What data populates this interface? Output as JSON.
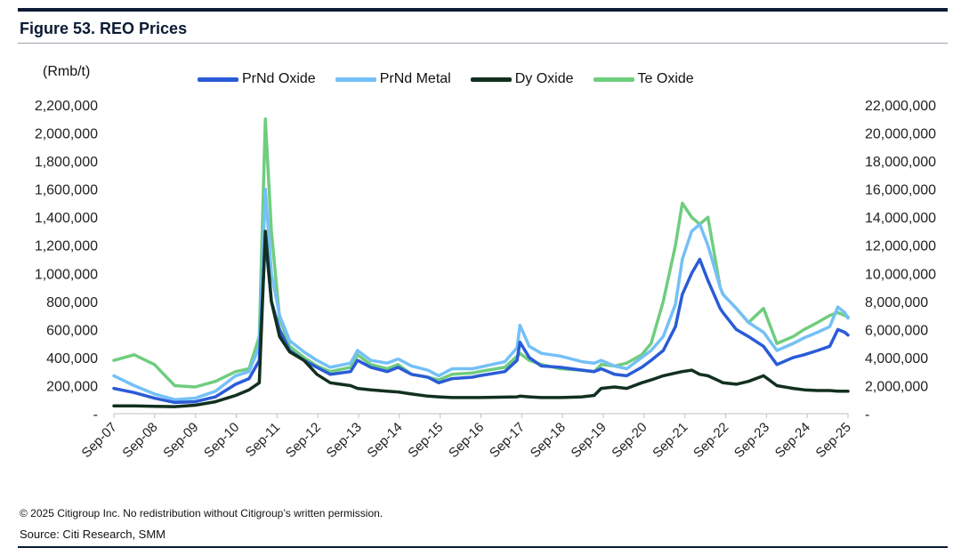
{
  "figure": {
    "title": "Figure 53. REO Prices",
    "copyright": "© 2025 Citigroup Inc. No redistribution without Citigroup’s written permission.",
    "source": "Source: Citi Research, SMM"
  },
  "chart_data": {
    "type": "line",
    "title": "Figure 53. REO Prices",
    "ylabel": "(Rmb/t)",
    "ylim": [
      0,
      2200000
    ],
    "y2lim": [
      0,
      22000000
    ],
    "yticks": [
      "-",
      "200,000",
      "400,000",
      "600,000",
      "800,000",
      "1,000,000",
      "1,200,000",
      "1,400,000",
      "1,600,000",
      "1,800,000",
      "2,000,000",
      "2,200,000"
    ],
    "y2ticks": [
      "-",
      "2,000,000",
      "4,000,000",
      "6,000,000",
      "8,000,000",
      "10,000,000",
      "12,000,000",
      "14,000,000",
      "16,000,000",
      "18,000,000",
      "20,000,000",
      "22,000,000"
    ],
    "xticks": [
      "Sep-07",
      "Sep-08",
      "Sep-09",
      "Sep-10",
      "Sep-11",
      "Sep-12",
      "Sep-13",
      "Sep-14",
      "Sep-15",
      "Sep-16",
      "Sep-17",
      "Sep-18",
      "Sep-19",
      "Sep-20",
      "Sep-21",
      "Sep-22",
      "Sep-23",
      "Sep-24",
      "Sep-25"
    ],
    "x": [
      2007.67,
      2008.17,
      2008.67,
      2009.17,
      2009.67,
      2010.17,
      2010.67,
      2011.0,
      2011.25,
      2011.4,
      2011.55,
      2011.75,
      2012.0,
      2012.35,
      2012.67,
      2013.0,
      2013.5,
      2013.67,
      2014.0,
      2014.4,
      2014.67,
      2015.0,
      2015.4,
      2015.67,
      2016.0,
      2016.5,
      2016.67,
      2017.3,
      2017.6,
      2017.67,
      2017.9,
      2018.2,
      2018.67,
      2019.2,
      2019.5,
      2019.67,
      2020.0,
      2020.3,
      2020.67,
      2020.9,
      2021.2,
      2021.5,
      2021.67,
      2021.9,
      2022.1,
      2022.3,
      2022.6,
      2022.67,
      2023.0,
      2023.3,
      2023.67,
      2024.0,
      2024.4,
      2024.67,
      2025.0,
      2025.3,
      2025.5,
      2025.67,
      2025.75
    ],
    "series": [
      {
        "name": "PrNd Oxide",
        "axis": "left",
        "color": "#2a5bd7",
        "values": [
          180000,
          150000,
          110000,
          80000,
          85000,
          120000,
          210000,
          250000,
          380000,
          1250000,
          800000,
          600000,
          450000,
          380000,
          330000,
          280000,
          300000,
          380000,
          330000,
          300000,
          330000,
          280000,
          260000,
          220000,
          250000,
          260000,
          270000,
          300000,
          380000,
          510000,
          400000,
          340000,
          330000,
          310000,
          300000,
          320000,
          280000,
          270000,
          330000,
          380000,
          450000,
          620000,
          850000,
          1000000,
          1100000,
          950000,
          750000,
          720000,
          600000,
          550000,
          480000,
          350000,
          400000,
          420000,
          450000,
          480000,
          600000,
          580000,
          560000
        ]
      },
      {
        "name": "PrNd Metal",
        "axis": "left",
        "color": "#74c0f7",
        "values": [
          270000,
          200000,
          140000,
          100000,
          110000,
          160000,
          270000,
          300000,
          480000,
          1600000,
          1000000,
          700000,
          520000,
          440000,
          380000,
          330000,
          360000,
          450000,
          380000,
          360000,
          390000,
          340000,
          310000,
          270000,
          320000,
          320000,
          330000,
          370000,
          470000,
          630000,
          480000,
          430000,
          410000,
          370000,
          360000,
          380000,
          340000,
          320000,
          400000,
          450000,
          550000,
          780000,
          1100000,
          1300000,
          1350000,
          1200000,
          900000,
          850000,
          750000,
          650000,
          580000,
          450000,
          500000,
          540000,
          580000,
          620000,
          760000,
          720000,
          680000
        ]
      },
      {
        "name": "Dy Oxide",
        "axis": "right",
        "color": "#12301f",
        "values": [
          550000,
          560000,
          520000,
          500000,
          600000,
          850000,
          1300000,
          1700000,
          2200000,
          13000000,
          8000000,
          5500000,
          4400000,
          3800000,
          2800000,
          2200000,
          2000000,
          1800000,
          1700000,
          1600000,
          1550000,
          1400000,
          1250000,
          1200000,
          1150000,
          1150000,
          1150000,
          1180000,
          1200000,
          1250000,
          1200000,
          1150000,
          1150000,
          1200000,
          1300000,
          1800000,
          1900000,
          1800000,
          2200000,
          2400000,
          2700000,
          2900000,
          3000000,
          3100000,
          2800000,
          2700000,
          2300000,
          2200000,
          2100000,
          2300000,
          2700000,
          2000000,
          1800000,
          1700000,
          1650000,
          1650000,
          1600000,
          1600000,
          1600000
        ]
      },
      {
        "name": "Te Oxide",
        "axis": "right",
        "color": "#6fcd7e",
        "values": [
          3800000,
          4200000,
          3500000,
          2000000,
          1900000,
          2300000,
          3000000,
          3200000,
          5500000,
          21000000,
          13000000,
          6800000,
          4800000,
          4000000,
          3400000,
          3000000,
          3300000,
          4200000,
          3500000,
          3200000,
          3500000,
          2800000,
          2600000,
          2400000,
          2800000,
          2900000,
          3000000,
          3300000,
          4100000,
          4300000,
          3800000,
          3500000,
          3200000,
          3100000,
          3000000,
          3500000,
          3400000,
          3600000,
          4200000,
          5000000,
          8000000,
          12000000,
          15000000,
          14000000,
          13500000,
          14000000,
          9000000,
          8500000,
          7500000,
          6500000,
          7500000,
          5000000,
          5500000,
          6000000,
          6500000,
          7000000,
          7200000,
          7000000,
          6900000
        ]
      }
    ]
  }
}
